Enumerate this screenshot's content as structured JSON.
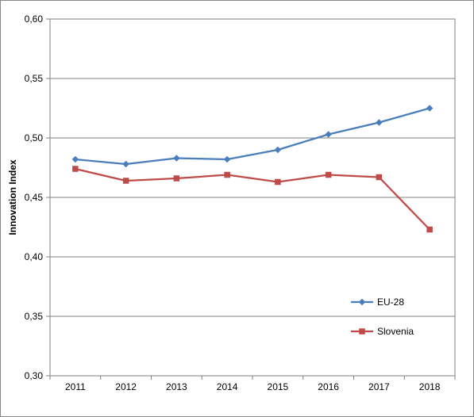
{
  "chart_data": {
    "type": "line",
    "title": "",
    "xlabel": "",
    "ylabel": "Innovation Index",
    "categories": [
      "2011",
      "2012",
      "2013",
      "2014",
      "2015",
      "2016",
      "2017",
      "2018"
    ],
    "ylim": [
      0.3,
      0.6
    ],
    "yticks": [
      0.3,
      0.35,
      0.4,
      0.45,
      0.5,
      0.55,
      0.6
    ],
    "ytick_labels": [
      "0,30",
      "0,35",
      "0,40",
      "0,45",
      "0,50",
      "0,55",
      "0,60"
    ],
    "grid": true,
    "legend_position": "lower-right",
    "series": [
      {
        "name": "EU-28",
        "color": "#4a7ebb",
        "marker": "diamond",
        "values": [
          0.482,
          0.478,
          0.483,
          0.482,
          0.49,
          0.503,
          0.513,
          0.525
        ]
      },
      {
        "name": "Slovenia",
        "color": "#be4b48",
        "marker": "square",
        "values": [
          0.474,
          0.464,
          0.466,
          0.469,
          0.463,
          0.469,
          0.467,
          0.423
        ]
      }
    ]
  }
}
